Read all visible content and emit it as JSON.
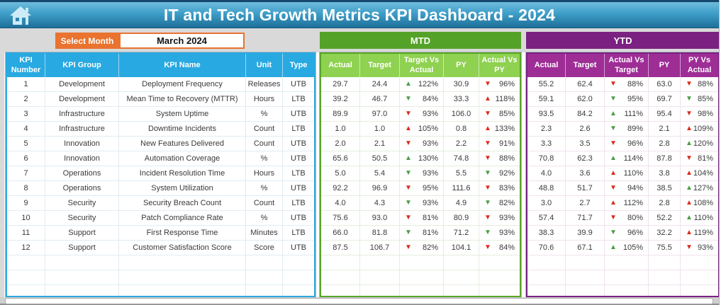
{
  "header": {
    "title": "IT and Tech Growth Metrics KPI Dashboard - 2024"
  },
  "controls": {
    "select_month_label": "Select Month",
    "selected_month": "March 2024"
  },
  "kpi_table": {
    "headers": {
      "number": "KPI Number",
      "group": "KPI Group",
      "name": "KPI Name",
      "unit": "Unit",
      "type": "Type"
    }
  },
  "mtd": {
    "title": "MTD",
    "headers": {
      "actual": "Actual",
      "target": "Target",
      "tva": "Target Vs Actual",
      "py": "PY",
      "avpy": "Actual Vs PY"
    }
  },
  "ytd": {
    "title": "YTD",
    "headers": {
      "actual": "Actual",
      "target": "Target",
      "avt": "Actual Vs Target",
      "py": "PY",
      "pva": "PY Vs Actual"
    }
  },
  "colors": {
    "header_teal_top": "#6FBCDD",
    "header_teal_bottom": "#1D6F98",
    "orange_accent": "#E9732F",
    "kpi_header_blue": "#29A9E1",
    "mtd_bar_green": "#55A228",
    "mtd_header_green": "#8FD150",
    "ytd_purple_dark": "#7B2182",
    "ytd_header_purple": "#9E2D96",
    "arrow_green": "#4C9C44",
    "arrow_red": "#DE2A1B"
  },
  "empty_row_count": 3,
  "rows": [
    {
      "num": "1",
      "group": "Development",
      "name": "Deployment Frequency",
      "unit": "Releases",
      "type": "UTB",
      "mtd": {
        "actual": "29.7",
        "target": "24.4",
        "target_vs_actual": {
          "dir": "up",
          "color": "green",
          "val": "122%"
        },
        "py": "30.9",
        "actual_vs_py": {
          "dir": "down",
          "color": "red",
          "val": "96%"
        }
      },
      "ytd": {
        "actual": "55.2",
        "target": "62.4",
        "actual_vs_target": {
          "dir": "down",
          "color": "red",
          "val": "88%"
        },
        "py": "63.0",
        "py_vs_actual": {
          "dir": "down",
          "color": "red",
          "val": "88%"
        }
      }
    },
    {
      "num": "2",
      "group": "Development",
      "name": "Mean Time to Recovery (MTTR)",
      "unit": "Hours",
      "type": "LTB",
      "mtd": {
        "actual": "39.2",
        "target": "46.7",
        "target_vs_actual": {
          "dir": "down",
          "color": "green",
          "val": "84%"
        },
        "py": "33.3",
        "actual_vs_py": {
          "dir": "up",
          "color": "red",
          "val": "118%"
        }
      },
      "ytd": {
        "actual": "59.1",
        "target": "62.0",
        "actual_vs_target": {
          "dir": "down",
          "color": "green",
          "val": "95%"
        },
        "py": "69.7",
        "py_vs_actual": {
          "dir": "down",
          "color": "green",
          "val": "85%"
        }
      }
    },
    {
      "num": "3",
      "group": "Infrastructure",
      "name": "System Uptime",
      "unit": "%",
      "type": "UTB",
      "mtd": {
        "actual": "89.9",
        "target": "97.0",
        "target_vs_actual": {
          "dir": "down",
          "color": "red",
          "val": "93%"
        },
        "py": "106.0",
        "actual_vs_py": {
          "dir": "down",
          "color": "red",
          "val": "85%"
        }
      },
      "ytd": {
        "actual": "93.5",
        "target": "84.2",
        "actual_vs_target": {
          "dir": "up",
          "color": "green",
          "val": "111%"
        },
        "py": "95.4",
        "py_vs_actual": {
          "dir": "down",
          "color": "red",
          "val": "98%"
        }
      }
    },
    {
      "num": "4",
      "group": "Infrastructure",
      "name": "Downtime Incidents",
      "unit": "Count",
      "type": "LTB",
      "mtd": {
        "actual": "1.0",
        "target": "1.0",
        "target_vs_actual": {
          "dir": "up",
          "color": "red",
          "val": "105%"
        },
        "py": "0.8",
        "actual_vs_py": {
          "dir": "up",
          "color": "red",
          "val": "133%"
        }
      },
      "ytd": {
        "actual": "2.3",
        "target": "2.6",
        "actual_vs_target": {
          "dir": "down",
          "color": "green",
          "val": "89%"
        },
        "py": "2.1",
        "py_vs_actual": {
          "dir": "up",
          "color": "red",
          "val": "109%"
        }
      }
    },
    {
      "num": "5",
      "group": "Innovation",
      "name": "New Features Delivered",
      "unit": "Count",
      "type": "UTB",
      "mtd": {
        "actual": "2.0",
        "target": "2.1",
        "target_vs_actual": {
          "dir": "down",
          "color": "red",
          "val": "93%"
        },
        "py": "2.2",
        "actual_vs_py": {
          "dir": "down",
          "color": "red",
          "val": "91%"
        }
      },
      "ytd": {
        "actual": "3.3",
        "target": "3.5",
        "actual_vs_target": {
          "dir": "down",
          "color": "red",
          "val": "96%"
        },
        "py": "2.8",
        "py_vs_actual": {
          "dir": "up",
          "color": "green",
          "val": "120%"
        }
      }
    },
    {
      "num": "6",
      "group": "Innovation",
      "name": "Automation Coverage",
      "unit": "%",
      "type": "UTB",
      "mtd": {
        "actual": "65.6",
        "target": "50.5",
        "target_vs_actual": {
          "dir": "up",
          "color": "green",
          "val": "130%"
        },
        "py": "74.8",
        "actual_vs_py": {
          "dir": "down",
          "color": "red",
          "val": "88%"
        }
      },
      "ytd": {
        "actual": "70.8",
        "target": "62.3",
        "actual_vs_target": {
          "dir": "up",
          "color": "green",
          "val": "114%"
        },
        "py": "87.8",
        "py_vs_actual": {
          "dir": "down",
          "color": "red",
          "val": "81%"
        }
      }
    },
    {
      "num": "7",
      "group": "Operations",
      "name": "Incident Resolution Time",
      "unit": "Hours",
      "type": "LTB",
      "mtd": {
        "actual": "5.0",
        "target": "5.4",
        "target_vs_actual": {
          "dir": "down",
          "color": "green",
          "val": "93%"
        },
        "py": "5.5",
        "actual_vs_py": {
          "dir": "down",
          "color": "green",
          "val": "92%"
        }
      },
      "ytd": {
        "actual": "4.0",
        "target": "3.6",
        "actual_vs_target": {
          "dir": "up",
          "color": "red",
          "val": "110%"
        },
        "py": "3.8",
        "py_vs_actual": {
          "dir": "up",
          "color": "red",
          "val": "104%"
        }
      }
    },
    {
      "num": "8",
      "group": "Operations",
      "name": "System Utilization",
      "unit": "%",
      "type": "UTB",
      "mtd": {
        "actual": "92.2",
        "target": "96.9",
        "target_vs_actual": {
          "dir": "down",
          "color": "red",
          "val": "95%"
        },
        "py": "111.6",
        "actual_vs_py": {
          "dir": "down",
          "color": "red",
          "val": "83%"
        }
      },
      "ytd": {
        "actual": "48.8",
        "target": "51.7",
        "actual_vs_target": {
          "dir": "down",
          "color": "red",
          "val": "94%"
        },
        "py": "38.5",
        "py_vs_actual": {
          "dir": "up",
          "color": "green",
          "val": "127%"
        }
      }
    },
    {
      "num": "9",
      "group": "Security",
      "name": "Security Breach Count",
      "unit": "Count",
      "type": "LTB",
      "mtd": {
        "actual": "4.0",
        "target": "4.3",
        "target_vs_actual": {
          "dir": "down",
          "color": "green",
          "val": "93%"
        },
        "py": "4.9",
        "actual_vs_py": {
          "dir": "down",
          "color": "green",
          "val": "82%"
        }
      },
      "ytd": {
        "actual": "3.0",
        "target": "2.7",
        "actual_vs_target": {
          "dir": "up",
          "color": "red",
          "val": "112%"
        },
        "py": "2.8",
        "py_vs_actual": {
          "dir": "up",
          "color": "red",
          "val": "108%"
        }
      }
    },
    {
      "num": "10",
      "group": "Security",
      "name": "Patch Compliance Rate",
      "unit": "%",
      "type": "UTB",
      "mtd": {
        "actual": "75.6",
        "target": "93.0",
        "target_vs_actual": {
          "dir": "down",
          "color": "red",
          "val": "81%"
        },
        "py": "80.9",
        "actual_vs_py": {
          "dir": "down",
          "color": "red",
          "val": "93%"
        }
      },
      "ytd": {
        "actual": "57.4",
        "target": "71.7",
        "actual_vs_target": {
          "dir": "down",
          "color": "red",
          "val": "80%"
        },
        "py": "52.2",
        "py_vs_actual": {
          "dir": "up",
          "color": "green",
          "val": "110%"
        }
      }
    },
    {
      "num": "11",
      "group": "Support",
      "name": "First Response Time",
      "unit": "Minutes",
      "type": "LTB",
      "mtd": {
        "actual": "66.0",
        "target": "81.8",
        "target_vs_actual": {
          "dir": "down",
          "color": "green",
          "val": "81%"
        },
        "py": "71.2",
        "actual_vs_py": {
          "dir": "down",
          "color": "green",
          "val": "93%"
        }
      },
      "ytd": {
        "actual": "38.3",
        "target": "39.9",
        "actual_vs_target": {
          "dir": "down",
          "color": "green",
          "val": "96%"
        },
        "py": "32.2",
        "py_vs_actual": {
          "dir": "up",
          "color": "red",
          "val": "119%"
        }
      }
    },
    {
      "num": "12",
      "group": "Support",
      "name": "Customer Satisfaction Score",
      "unit": "Score",
      "type": "UTB",
      "mtd": {
        "actual": "87.5",
        "target": "106.7",
        "target_vs_actual": {
          "dir": "down",
          "color": "red",
          "val": "82%"
        },
        "py": "104.1",
        "actual_vs_py": {
          "dir": "down",
          "color": "red",
          "val": "84%"
        }
      },
      "ytd": {
        "actual": "70.6",
        "target": "67.1",
        "actual_vs_target": {
          "dir": "up",
          "color": "green",
          "val": "105%"
        },
        "py": "75.5",
        "py_vs_actual": {
          "dir": "down",
          "color": "red",
          "val": "93%"
        }
      }
    }
  ]
}
